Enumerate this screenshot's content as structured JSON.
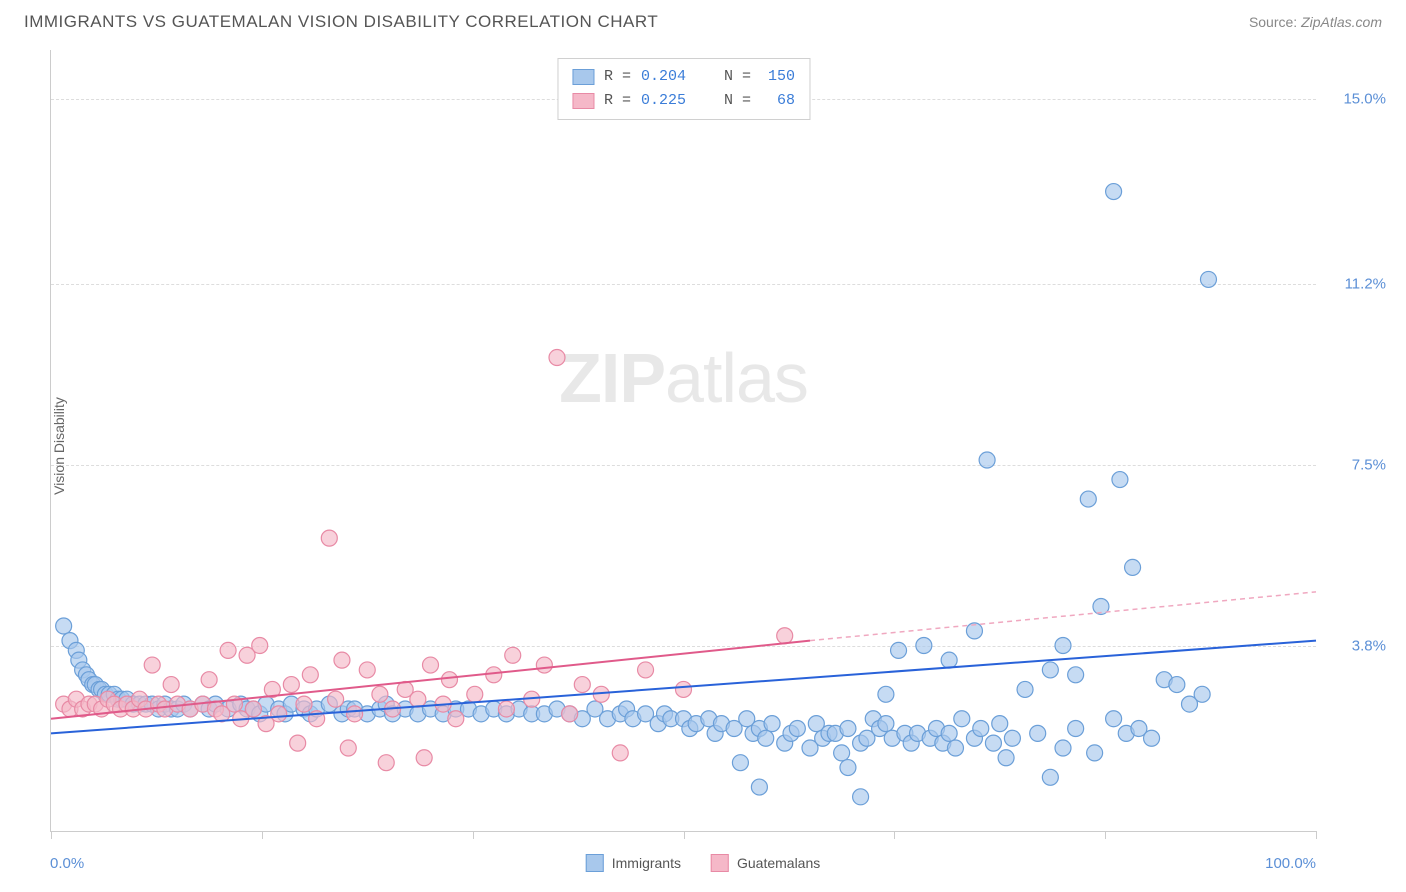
{
  "header": {
    "title": "IMMIGRANTS VS GUATEMALAN VISION DISABILITY CORRELATION CHART",
    "source_label": "Source:",
    "source_value": "ZipAtlas.com"
  },
  "chart": {
    "type": "scatter",
    "y_axis_label": "Vision Disability",
    "xlim": [
      0,
      100
    ],
    "ylim": [
      0,
      16
    ],
    "x_tick_positions": [
      0,
      16.67,
      33.33,
      50,
      66.67,
      83.33,
      100
    ],
    "x_min_label": "0.0%",
    "x_max_label": "100.0%",
    "y_ticks": [
      {
        "pos": 3.8,
        "label": "3.8%"
      },
      {
        "pos": 7.5,
        "label": "7.5%"
      },
      {
        "pos": 11.2,
        "label": "11.2%"
      },
      {
        "pos": 15.0,
        "label": "15.0%"
      }
    ],
    "grid_color": "#dddddd",
    "background_color": "#ffffff",
    "watermark_text_bold": "ZIP",
    "watermark_text_light": "atlas",
    "watermark_color": "#e8e8e8",
    "series": [
      {
        "name": "Immigrants",
        "color_fill": "#a8c8ec",
        "color_stroke": "#6b9fd8",
        "marker_radius": 8,
        "marker_opacity": 0.65,
        "trend": {
          "x1": 0,
          "y1": 2.0,
          "x2": 100,
          "y2": 3.9,
          "color": "#2962d9",
          "width": 2,
          "dash": "none"
        },
        "R": "0.204",
        "N": "150",
        "points": [
          [
            1,
            4.2
          ],
          [
            1.5,
            3.9
          ],
          [
            2,
            3.7
          ],
          [
            2.2,
            3.5
          ],
          [
            2.5,
            3.3
          ],
          [
            2.8,
            3.2
          ],
          [
            3,
            3.1
          ],
          [
            3.3,
            3.0
          ],
          [
            3.5,
            3.0
          ],
          [
            3.8,
            2.9
          ],
          [
            4,
            2.9
          ],
          [
            4.3,
            2.8
          ],
          [
            4.6,
            2.8
          ],
          [
            5,
            2.8
          ],
          [
            5.3,
            2.7
          ],
          [
            5.6,
            2.7
          ],
          [
            6,
            2.7
          ],
          [
            6.5,
            2.6
          ],
          [
            7,
            2.6
          ],
          [
            7.5,
            2.6
          ],
          [
            8,
            2.6
          ],
          [
            8.5,
            2.5
          ],
          [
            9,
            2.6
          ],
          [
            9.5,
            2.5
          ],
          [
            10,
            2.5
          ],
          [
            10.5,
            2.6
          ],
          [
            11,
            2.5
          ],
          [
            12,
            2.6
          ],
          [
            12.5,
            2.5
          ],
          [
            13,
            2.6
          ],
          [
            14,
            2.5
          ],
          [
            15,
            2.6
          ],
          [
            15.5,
            2.5
          ],
          [
            16,
            2.5
          ],
          [
            16.5,
            2.4
          ],
          [
            17,
            2.6
          ],
          [
            18,
            2.5
          ],
          [
            18.5,
            2.4
          ],
          [
            19,
            2.6
          ],
          [
            20,
            2.5
          ],
          [
            20.5,
            2.4
          ],
          [
            21,
            2.5
          ],
          [
            22,
            2.6
          ],
          [
            23,
            2.4
          ],
          [
            23.5,
            2.5
          ],
          [
            24,
            2.5
          ],
          [
            25,
            2.4
          ],
          [
            26,
            2.5
          ],
          [
            26.5,
            2.6
          ],
          [
            27,
            2.4
          ],
          [
            28,
            2.5
          ],
          [
            29,
            2.4
          ],
          [
            30,
            2.5
          ],
          [
            31,
            2.4
          ],
          [
            32,
            2.5
          ],
          [
            33,
            2.5
          ],
          [
            34,
            2.4
          ],
          [
            35,
            2.5
          ],
          [
            36,
            2.4
          ],
          [
            37,
            2.5
          ],
          [
            38,
            2.4
          ],
          [
            39,
            2.4
          ],
          [
            40,
            2.5
          ],
          [
            41,
            2.4
          ],
          [
            42,
            2.3
          ],
          [
            43,
            2.5
          ],
          [
            44,
            2.3
          ],
          [
            45,
            2.4
          ],
          [
            45.5,
            2.5
          ],
          [
            46,
            2.3
          ],
          [
            47,
            2.4
          ],
          [
            48,
            2.2
          ],
          [
            48.5,
            2.4
          ],
          [
            49,
            2.3
          ],
          [
            50,
            2.3
          ],
          [
            50.5,
            2.1
          ],
          [
            51,
            2.2
          ],
          [
            52,
            2.3
          ],
          [
            52.5,
            2.0
          ],
          [
            53,
            2.2
          ],
          [
            54,
            2.1
          ],
          [
            54.5,
            1.4
          ],
          [
            55,
            2.3
          ],
          [
            55.5,
            2.0
          ],
          [
            56,
            2.1
          ],
          [
            56.5,
            1.9
          ],
          [
            57,
            2.2
          ],
          [
            58,
            1.8
          ],
          [
            58.5,
            2.0
          ],
          [
            59,
            2.1
          ],
          [
            60,
            1.7
          ],
          [
            60.5,
            2.2
          ],
          [
            61,
            1.9
          ],
          [
            61.5,
            2.0
          ],
          [
            62,
            2.0
          ],
          [
            62.5,
            1.6
          ],
          [
            63,
            2.1
          ],
          [
            64,
            1.8
          ],
          [
            64.5,
            1.9
          ],
          [
            65,
            2.3
          ],
          [
            65.5,
            2.1
          ],
          [
            66,
            2.2
          ],
          [
            66.5,
            1.9
          ],
          [
            67,
            3.7
          ],
          [
            67.5,
            2.0
          ],
          [
            68,
            1.8
          ],
          [
            68.5,
            2.0
          ],
          [
            69,
            3.8
          ],
          [
            69.5,
            1.9
          ],
          [
            70,
            2.1
          ],
          [
            70.5,
            1.8
          ],
          [
            71,
            2.0
          ],
          [
            71.5,
            1.7
          ],
          [
            72,
            2.3
          ],
          [
            73,
            1.9
          ],
          [
            73.5,
            2.1
          ],
          [
            74,
            7.6
          ],
          [
            74.5,
            1.8
          ],
          [
            75,
            2.2
          ],
          [
            75.5,
            1.5
          ],
          [
            76,
            1.9
          ],
          [
            78,
            2.0
          ],
          [
            56,
            0.9
          ],
          [
            80,
            1.7
          ],
          [
            64,
            0.7
          ],
          [
            81,
            2.1
          ],
          [
            82,
            6.8
          ],
          [
            82.5,
            1.6
          ],
          [
            83,
            4.6
          ],
          [
            84,
            2.3
          ],
          [
            84.5,
            7.2
          ],
          [
            85,
            2.0
          ],
          [
            85.5,
            5.4
          ],
          [
            63,
            1.3
          ],
          [
            86,
            2.1
          ],
          [
            79,
            1.1
          ],
          [
            87,
            1.9
          ],
          [
            88,
            3.1
          ],
          [
            84,
            13.1
          ],
          [
            89,
            3.0
          ],
          [
            90,
            2.6
          ],
          [
            91,
            2.8
          ],
          [
            91.5,
            11.3
          ],
          [
            71,
            3.5
          ],
          [
            73,
            4.1
          ],
          [
            77,
            2.9
          ],
          [
            79,
            3.3
          ],
          [
            80,
            3.8
          ],
          [
            81,
            3.2
          ],
          [
            66,
            2.8
          ]
        ]
      },
      {
        "name": "Guatemalans",
        "color_fill": "#f5b8c8",
        "color_stroke": "#e88aa5",
        "marker_radius": 8,
        "marker_opacity": 0.65,
        "trend": {
          "x1": 0,
          "y1": 2.3,
          "x2": 60,
          "y2": 3.9,
          "color": "#e05a8a",
          "width": 2,
          "dash": "none"
        },
        "trend_ext": {
          "x1": 60,
          "y1": 3.9,
          "x2": 100,
          "y2": 4.9,
          "color": "#f0a8c0",
          "width": 1.5,
          "dash": "5,4"
        },
        "R": "0.225",
        "N": "68",
        "points": [
          [
            1,
            2.6
          ],
          [
            1.5,
            2.5
          ],
          [
            2,
            2.7
          ],
          [
            2.5,
            2.5
          ],
          [
            3,
            2.6
          ],
          [
            3.5,
            2.6
          ],
          [
            4,
            2.5
          ],
          [
            4.5,
            2.7
          ],
          [
            5,
            2.6
          ],
          [
            5.5,
            2.5
          ],
          [
            6,
            2.6
          ],
          [
            6.5,
            2.5
          ],
          [
            7,
            2.7
          ],
          [
            7.5,
            2.5
          ],
          [
            8,
            3.4
          ],
          [
            8.5,
            2.6
          ],
          [
            9,
            2.5
          ],
          [
            9.5,
            3.0
          ],
          [
            10,
            2.6
          ],
          [
            11,
            2.5
          ],
          [
            12,
            2.6
          ],
          [
            12.5,
            3.1
          ],
          [
            13,
            2.5
          ],
          [
            13.5,
            2.4
          ],
          [
            14,
            3.7
          ],
          [
            14.5,
            2.6
          ],
          [
            15,
            2.3
          ],
          [
            15.5,
            3.6
          ],
          [
            16,
            2.5
          ],
          [
            16.5,
            3.8
          ],
          [
            17,
            2.2
          ],
          [
            17.5,
            2.9
          ],
          [
            18,
            2.4
          ],
          [
            19,
            3.0
          ],
          [
            19.5,
            1.8
          ],
          [
            20,
            2.6
          ],
          [
            20.5,
            3.2
          ],
          [
            21,
            2.3
          ],
          [
            22,
            6.0
          ],
          [
            22.5,
            2.7
          ],
          [
            23,
            3.5
          ],
          [
            23.5,
            1.7
          ],
          [
            24,
            2.4
          ],
          [
            25,
            3.3
          ],
          [
            26,
            2.8
          ],
          [
            26.5,
            1.4
          ],
          [
            27,
            2.5
          ],
          [
            28,
            2.9
          ],
          [
            29,
            2.7
          ],
          [
            29.5,
            1.5
          ],
          [
            30,
            3.4
          ],
          [
            31,
            2.6
          ],
          [
            31.5,
            3.1
          ],
          [
            32,
            2.3
          ],
          [
            33.5,
            2.8
          ],
          [
            35,
            3.2
          ],
          [
            36,
            2.5
          ],
          [
            36.5,
            3.6
          ],
          [
            38,
            2.7
          ],
          [
            39,
            3.4
          ],
          [
            40,
            9.7
          ],
          [
            41,
            2.4
          ],
          [
            42,
            3.0
          ],
          [
            43.5,
            2.8
          ],
          [
            45,
            1.6
          ],
          [
            47,
            3.3
          ],
          [
            50,
            2.9
          ],
          [
            58,
            4.0
          ]
        ]
      }
    ],
    "bottom_legend": [
      {
        "label": "Immigrants",
        "fill": "#a8c8ec",
        "stroke": "#6b9fd8"
      },
      {
        "label": "Guatemalans",
        "fill": "#f5b8c8",
        "stroke": "#e88aa5"
      }
    ]
  }
}
